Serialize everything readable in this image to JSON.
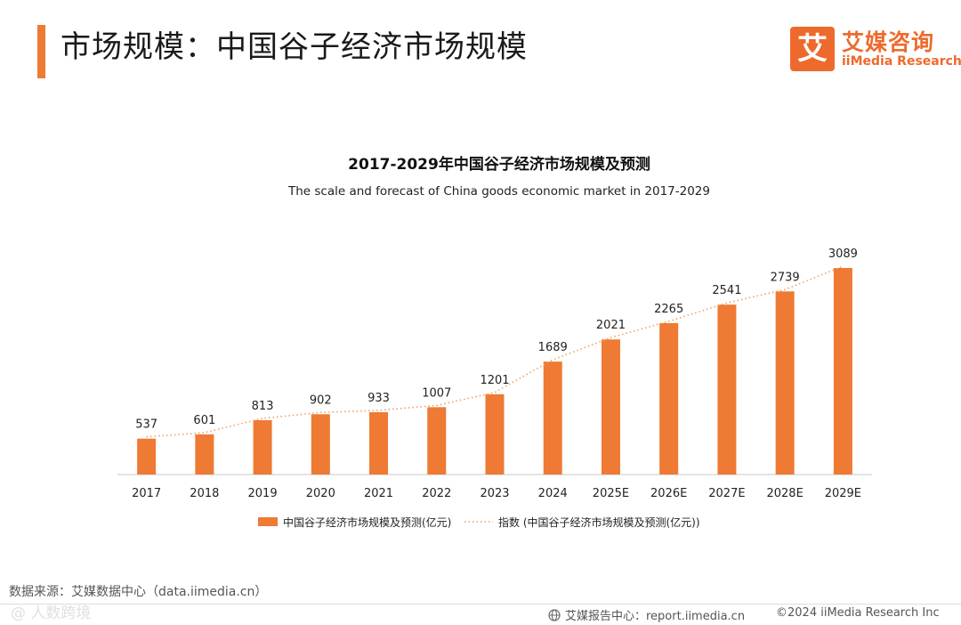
{
  "header": {
    "title": "市场规模：中国谷子经济市场规模",
    "logo_cn": "艾媒咨询",
    "logo_en": "iiMedia Research",
    "logo_mark": "艾"
  },
  "colors": {
    "accent": "#ee7a34",
    "bar": "#ee7a34",
    "line": "#f0a060"
  },
  "chart_data": {
    "type": "bar",
    "title": "2017-2029年中国谷子经济市场规模及预测",
    "subtitle": "The scale and forecast of China goods economic market in 2017-2029",
    "categories": [
      "2017",
      "2018",
      "2019",
      "2020",
      "2021",
      "2022",
      "2023",
      "2024",
      "2025E",
      "2026E",
      "2027E",
      "2028E",
      "2029E"
    ],
    "series": [
      {
        "name": "中国谷子经济市场规模及预测(亿元)",
        "type": "bar",
        "values": [
          537,
          601,
          813,
          902,
          933,
          1007,
          1201,
          1689,
          2021,
          2265,
          2541,
          2739,
          3089
        ]
      },
      {
        "name": "指数 (中国谷子经济市场规模及预测(亿元))",
        "type": "trendline-dotted",
        "values": [
          537,
          601,
          813,
          902,
          933,
          1007,
          1201,
          1689,
          2021,
          2265,
          2541,
          2739,
          3089
        ]
      }
    ],
    "data_labels": [
      "537",
      "601",
      "813",
      "902",
      "933",
      "1007",
      "1201",
      "1689",
      "2021",
      "2265",
      "2541",
      "2739",
      "3089"
    ],
    "ylim": [
      0,
      3200
    ],
    "grid": false,
    "legend_position": "bottom"
  },
  "footer": {
    "source": "数据来源：艾媒数据中心（data.iimedia.cn）",
    "watermark": "@ 人数跨境",
    "report_site": "艾媒报告中心：report.iimedia.cn",
    "copyright": "©2024  iiMedia Research Inc"
  }
}
